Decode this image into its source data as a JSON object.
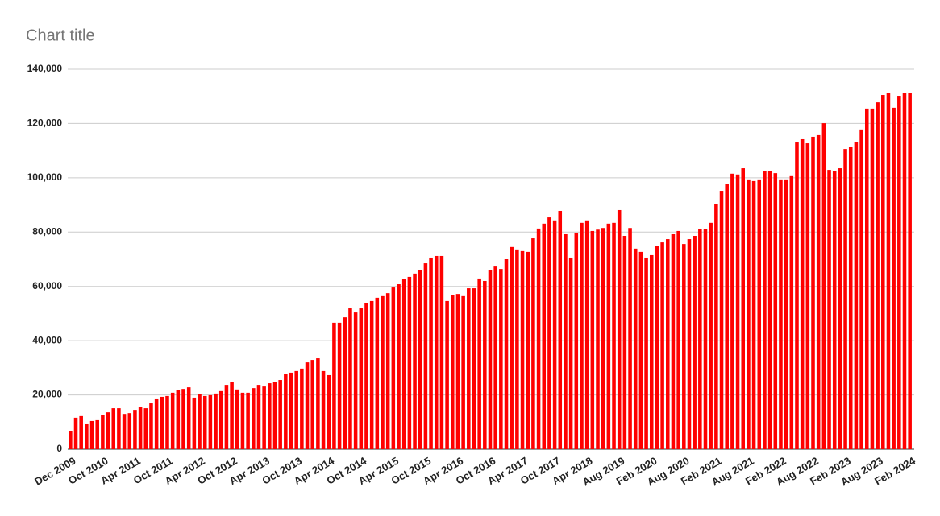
{
  "chart_data": {
    "type": "bar",
    "title": "Chart title",
    "categories": [
      "Dec 2009",
      null,
      null,
      null,
      null,
      null,
      "Oct 2010",
      null,
      null,
      null,
      null,
      null,
      "Apr 2011",
      null,
      null,
      null,
      null,
      null,
      "Oct 2011",
      null,
      null,
      null,
      null,
      null,
      "Apr 2012",
      null,
      null,
      null,
      null,
      null,
      "Oct 2012",
      null,
      null,
      null,
      null,
      null,
      "Apr 2013",
      null,
      null,
      null,
      null,
      null,
      "Oct 2013",
      null,
      null,
      null,
      null,
      null,
      "Apr 2014",
      null,
      null,
      null,
      null,
      null,
      "Oct 2014",
      null,
      null,
      null,
      null,
      null,
      "Apr 2015",
      null,
      null,
      null,
      null,
      null,
      "Oct 2015",
      null,
      null,
      null,
      null,
      null,
      "Apr 2016",
      null,
      null,
      null,
      null,
      null,
      "Oct 2016",
      null,
      null,
      null,
      null,
      null,
      "Apr 2017",
      null,
      null,
      null,
      null,
      null,
      "Oct 2017",
      null,
      null,
      null,
      null,
      null,
      "Apr 2018",
      null,
      null,
      null,
      null,
      null,
      "Aug 2019",
      null,
      null,
      null,
      null,
      null,
      "Feb 2020",
      null,
      null,
      null,
      null,
      null,
      "Aug 2020",
      null,
      null,
      null,
      null,
      null,
      "Feb 2021",
      null,
      null,
      null,
      null,
      null,
      "Aug 2021",
      null,
      null,
      null,
      null,
      null,
      "Feb 2022",
      null,
      null,
      null,
      null,
      null,
      "Aug 2022",
      null,
      null,
      null,
      null,
      null,
      "Feb 2023",
      null,
      null,
      null,
      null,
      null,
      "Aug 2023",
      null,
      null,
      null,
      null,
      null,
      "Feb 2024"
    ],
    "values": [
      6800,
      11600,
      12200,
      9200,
      10400,
      10700,
      12500,
      13600,
      15100,
      15100,
      13000,
      13300,
      14500,
      15700,
      15100,
      16900,
      18400,
      19300,
      19600,
      20800,
      21700,
      22200,
      22800,
      19000,
      20200,
      19600,
      19900,
      20500,
      21400,
      23700,
      24900,
      22000,
      20800,
      20800,
      22500,
      23700,
      23100,
      24300,
      24900,
      25500,
      27600,
      28200,
      28800,
      29700,
      32000,
      32900,
      33500,
      28800,
      27300,
      46600,
      46600,
      48600,
      51900,
      50400,
      51900,
      53700,
      54600,
      55800,
      56400,
      57500,
      59600,
      60800,
      62600,
      63500,
      64700,
      65900,
      68500,
      70600,
      71200,
      71200,
      54600,
      56700,
      57200,
      56400,
      59300,
      59300,
      62900,
      62000,
      66100,
      67300,
      66400,
      70000,
      74500,
      73600,
      73000,
      72700,
      77700,
      81300,
      83100,
      85400,
      84300,
      87800,
      79200,
      70600,
      79800,
      83400,
      84300,
      80400,
      80900,
      81500,
      83100,
      83400,
      88100,
      78600,
      81500,
      73900,
      72700,
      70600,
      71500,
      74800,
      76200,
      77400,
      79200,
      80400,
      75600,
      77400,
      78600,
      81000,
      81000,
      83400,
      90200,
      95200,
      97600,
      101500,
      101200,
      103500,
      99400,
      98800,
      99400,
      102600,
      102600,
      101700,
      99400,
      99400,
      100600,
      113000,
      114200,
      112700,
      115100,
      115700,
      120100,
      102900,
      102600,
      103500,
      110600,
      111500,
      113300,
      117800,
      125500,
      125500,
      127800,
      130500,
      131100,
      125800,
      130200,
      131100,
      131400
    ],
    "color": "#ff0000",
    "ylim": [
      0,
      140000
    ],
    "yticks": [
      0,
      {
        "value": 20000,
        "label": "20,000"
      },
      {
        "value": 40000,
        "label": "40,000"
      },
      {
        "value": 60000,
        "label": "60,000"
      },
      {
        "value": 80000,
        "label": "80,000"
      },
      {
        "value": 100000,
        "label": "100,000"
      },
      {
        "value": 120000,
        "label": "120,000"
      },
      {
        "value": 140000,
        "label": "140,000"
      }
    ],
    "grid": true
  }
}
